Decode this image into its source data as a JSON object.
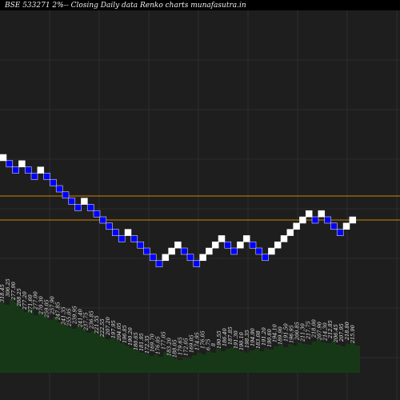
{
  "title": "BSE 533271 2%-- Closing Daily data Renko  charts munafasutra.in",
  "colors": {
    "background": "#1e1e1e",
    "grid": "#3a3a3a",
    "up_brick": "#ffffff",
    "down_brick": "#0000ff",
    "ref_line": "#cc8400",
    "volume": "#163816"
  },
  "chart_data": {
    "type": "renko",
    "title": "BSE 533271 2%-- Closing Daily data Renko  charts munafasutra.in",
    "bricks": [
      {
        "dir": "up",
        "level": 20
      },
      {
        "dir": "down",
        "level": 19
      },
      {
        "dir": "down",
        "level": 18
      },
      {
        "dir": "up",
        "level": 19
      },
      {
        "dir": "down",
        "level": 18
      },
      {
        "dir": "down",
        "level": 17
      },
      {
        "dir": "up",
        "level": 18
      },
      {
        "dir": "down",
        "level": 17
      },
      {
        "dir": "down",
        "level": 16
      },
      {
        "dir": "down",
        "level": 15
      },
      {
        "dir": "down",
        "level": 14
      },
      {
        "dir": "down",
        "level": 13
      },
      {
        "dir": "down",
        "level": 12
      },
      {
        "dir": "up",
        "level": 13
      },
      {
        "dir": "down",
        "level": 12
      },
      {
        "dir": "down",
        "level": 11
      },
      {
        "dir": "down",
        "level": 10
      },
      {
        "dir": "down",
        "level": 9
      },
      {
        "dir": "down",
        "level": 8
      },
      {
        "dir": "down",
        "level": 7
      },
      {
        "dir": "up",
        "level": 8
      },
      {
        "dir": "down",
        "level": 7
      },
      {
        "dir": "down",
        "level": 6
      },
      {
        "dir": "down",
        "level": 5
      },
      {
        "dir": "down",
        "level": 4
      },
      {
        "dir": "down",
        "level": 3
      },
      {
        "dir": "up",
        "level": 4
      },
      {
        "dir": "up",
        "level": 5
      },
      {
        "dir": "up",
        "level": 6
      },
      {
        "dir": "down",
        "level": 5
      },
      {
        "dir": "down",
        "level": 4
      },
      {
        "dir": "down",
        "level": 3
      },
      {
        "dir": "up",
        "level": 4
      },
      {
        "dir": "up",
        "level": 5
      },
      {
        "dir": "up",
        "level": 6
      },
      {
        "dir": "up",
        "level": 7
      },
      {
        "dir": "down",
        "level": 6
      },
      {
        "dir": "down",
        "level": 5
      },
      {
        "dir": "up",
        "level": 6
      },
      {
        "dir": "up",
        "level": 7
      },
      {
        "dir": "down",
        "level": 6
      },
      {
        "dir": "down",
        "level": 5
      },
      {
        "dir": "down",
        "level": 4
      },
      {
        "dir": "up",
        "level": 5
      },
      {
        "dir": "up",
        "level": 6
      },
      {
        "dir": "up",
        "level": 7
      },
      {
        "dir": "up",
        "level": 8
      },
      {
        "dir": "up",
        "level": 9
      },
      {
        "dir": "up",
        "level": 10
      },
      {
        "dir": "up",
        "level": 11
      },
      {
        "dir": "down",
        "level": 10
      },
      {
        "dir": "up",
        "level": 11
      },
      {
        "dir": "down",
        "level": 10
      },
      {
        "dir": "down",
        "level": 9
      },
      {
        "dir": "down",
        "level": 8
      },
      {
        "dir": "up",
        "level": 9
      },
      {
        "dir": "up",
        "level": 10
      }
    ],
    "reference_lines": [
      245,
      275
    ],
    "volume_labels": [
      "",
      "",
      "",
      "318.45",
      "306.25",
      "277.90",
      "288.25",
      "277.20",
      "271.60",
      "277.00",
      "270.30",
      "259.05",
      "257.90",
      "247.85",
      "241.35",
      "255.05",
      "239.95",
      "241.40",
      "237.75",
      "236.85",
      "221.55",
      "222.55",
      "207.20",
      "197.95",
      "204.05",
      "196.85",
      "190.20",
      "180.65",
      "181.95",
      "172.35",
      "169.70",
      "176.05",
      "177.05",
      "183.20",
      "188.05",
      "179.65",
      "172.05",
      "169.05",
      "174.95",
      "176.05",
      "6.75",
      "8",
      "190.55",
      "186.40",
      "187.85",
      "191.30",
      "190.10",
      "198.35",
      "194.90",
      "183.08",
      "191.20",
      "",
      "",
      "",
      "",
      "",
      "",
      "",
      "",
      "",
      "",
      "",
      "",
      "",
      "",
      "",
      "",
      "",
      "",
      "",
      "",
      "",
      "",
      "",
      ""
    ],
    "volume_labels_extra": [
      "190.60",
      "194.10",
      "189.90",
      "191.50",
      "196.95",
      "200.85",
      "211.30",
      "217.75",
      "218.00",
      "207.90",
      "214.30",
      "212.85",
      "206.45",
      "207.95",
      "218.80",
      "215.90"
    ],
    "volume_heights": [
      88,
      85,
      92,
      88,
      80,
      76,
      80,
      72,
      76,
      70,
      66,
      70,
      63,
      60,
      57,
      55,
      58,
      54,
      50,
      52,
      48,
      46,
      42,
      44,
      40,
      37,
      34,
      31,
      28,
      25,
      24,
      21,
      23,
      20,
      26,
      22,
      18,
      16,
      19,
      18,
      22,
      25,
      23,
      27,
      25,
      30,
      27,
      30,
      32,
      29,
      27,
      25,
      28,
      30,
      27,
      31,
      29,
      33,
      35,
      32,
      36,
      34,
      38,
      36,
      35,
      39,
      41,
      38,
      37,
      40,
      35,
      33,
      36,
      38,
      34
    ]
  }
}
